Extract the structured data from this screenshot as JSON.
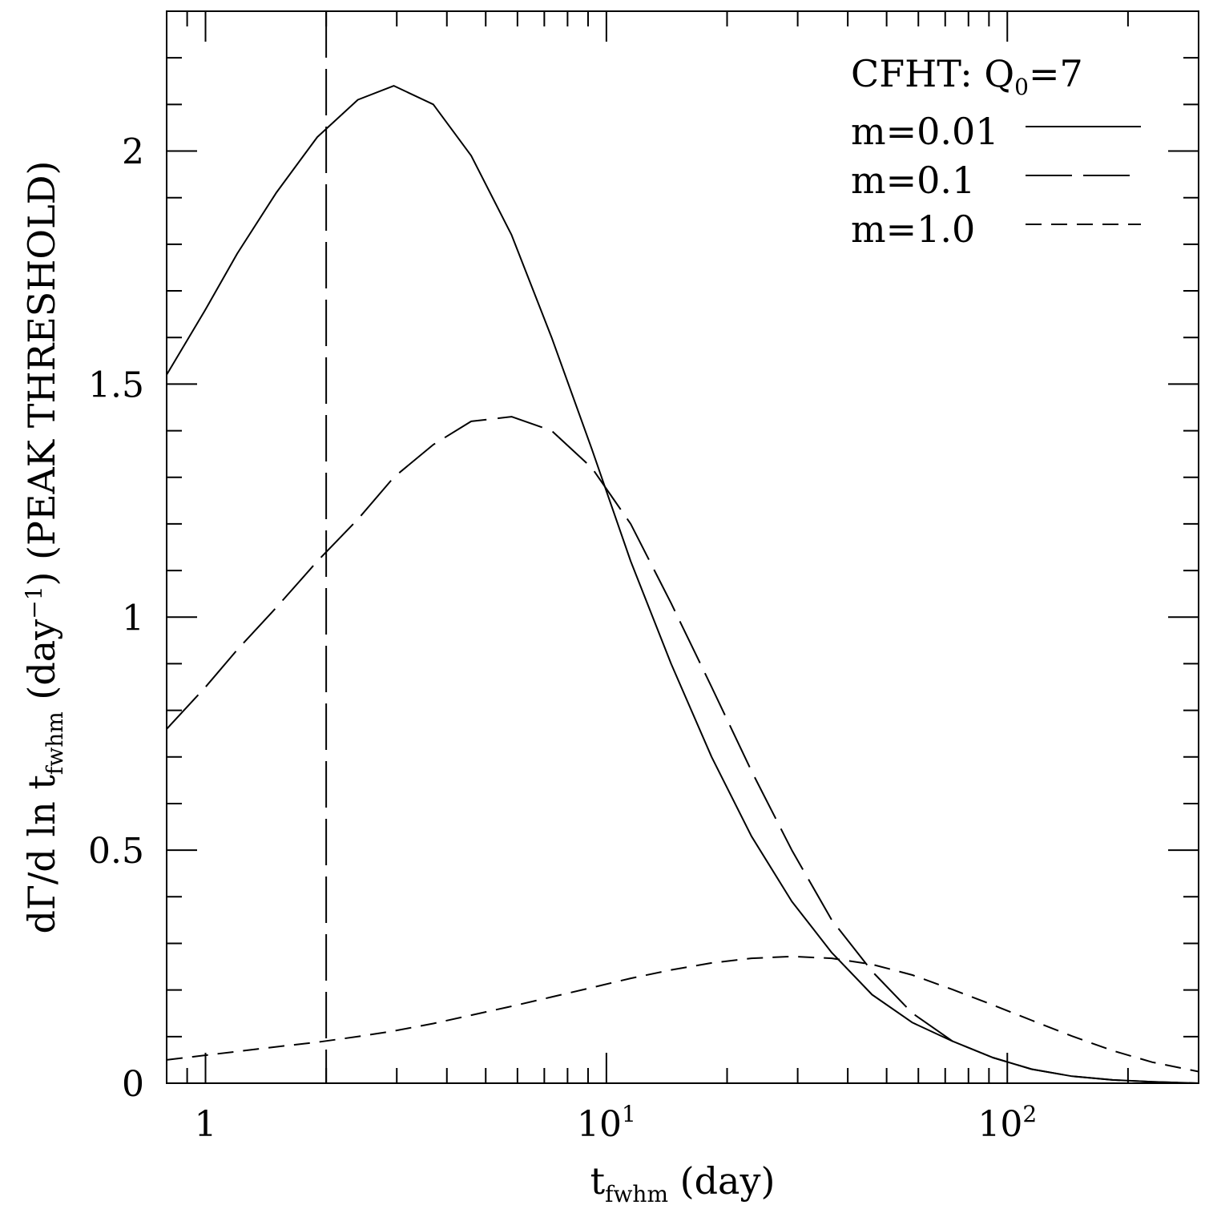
{
  "chart_data": {
    "type": "line",
    "title": "",
    "xlabel": {
      "base": "t",
      "sub": "fwhm",
      "rest": " (day)"
    },
    "ylabel": {
      "p1": "dΓ/d ln t",
      "sub": "fwhm",
      "p2": " (day",
      "sup": "−1",
      "p3": ") (PEAK THRESHOLD)"
    },
    "x_scale": "log",
    "xlim": [
      0.8,
      300
    ],
    "ylim": [
      0,
      2.3
    ],
    "x_ticks": [
      {
        "value": 1,
        "base": "1",
        "exp": ""
      },
      {
        "value": 10,
        "base": "10",
        "exp": "1"
      },
      {
        "value": 100,
        "base": "10",
        "exp": "2"
      }
    ],
    "y_ticks": [
      {
        "value": 0,
        "label": "0"
      },
      {
        "value": 0.5,
        "label": "0.5"
      },
      {
        "value": 1,
        "label": "1"
      },
      {
        "value": 1.5,
        "label": "1.5"
      },
      {
        "value": 2,
        "label": "2"
      }
    ],
    "legend": {
      "position": "top-right",
      "title": {
        "base": "CFHT:  Q",
        "sub": "0",
        "rest": "=7"
      }
    },
    "vline": {
      "x": 2.0,
      "style": "long-dash"
    },
    "series": [
      {
        "name": "m=0.01",
        "style": "solid",
        "x": [
          0.8,
          1.0,
          1.2,
          1.5,
          1.9,
          2.4,
          2.95,
          3.7,
          4.6,
          5.8,
          7.3,
          9.2,
          11.5,
          14.5,
          18.3,
          23,
          29,
          36.5,
          46,
          58,
          73,
          92,
          115,
          145,
          183,
          230,
          300
        ],
        "y": [
          1.52,
          1.66,
          1.78,
          1.91,
          2.03,
          2.11,
          2.14,
          2.1,
          1.99,
          1.82,
          1.6,
          1.36,
          1.12,
          0.9,
          0.7,
          0.53,
          0.39,
          0.28,
          0.19,
          0.13,
          0.09,
          0.055,
          0.03,
          0.015,
          0.007,
          0.003,
          0.0
        ]
      },
      {
        "name": "m=0.1",
        "style": "long-dash",
        "x": [
          0.8,
          1.0,
          1.2,
          1.5,
          1.9,
          2.4,
          2.95,
          3.7,
          4.6,
          5.8,
          7.3,
          9.2,
          11.5,
          14.5,
          18.3,
          23,
          29,
          36.5,
          46,
          58,
          73,
          92,
          115,
          145,
          183,
          230,
          300
        ],
        "y": [
          0.76,
          0.85,
          0.93,
          1.02,
          1.12,
          1.21,
          1.3,
          1.37,
          1.42,
          1.43,
          1.4,
          1.32,
          1.2,
          1.03,
          0.85,
          0.67,
          0.5,
          0.35,
          0.24,
          0.15,
          0.09,
          0.055,
          0.03,
          0.015,
          0.007,
          0.003,
          0.0
        ]
      },
      {
        "name": "m=1.0",
        "style": "short-dash",
        "x": [
          0.8,
          1.0,
          1.2,
          1.5,
          1.9,
          2.4,
          2.95,
          3.7,
          4.6,
          5.8,
          7.3,
          9.2,
          11.5,
          14.5,
          18.3,
          23,
          29,
          36.5,
          46,
          58,
          73,
          92,
          115,
          145,
          183,
          230,
          300
        ],
        "y": [
          0.05,
          0.06,
          0.068,
          0.078,
          0.088,
          0.1,
          0.112,
          0.128,
          0.146,
          0.165,
          0.185,
          0.205,
          0.225,
          0.243,
          0.258,
          0.268,
          0.272,
          0.268,
          0.255,
          0.232,
          0.201,
          0.168,
          0.135,
          0.101,
          0.07,
          0.045,
          0.025
        ]
      }
    ]
  }
}
